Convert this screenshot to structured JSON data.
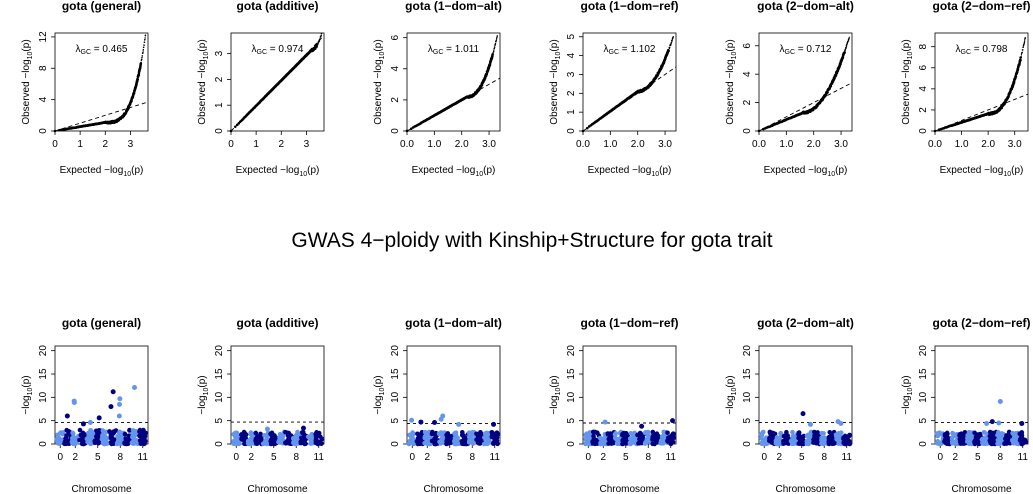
{
  "figure": {
    "main_title": "GWAS 4−ploidy with Kinship+Structure for gota trait"
  },
  "colors": {
    "light_blue": "#6495ed",
    "dark_blue": "#000080",
    "line": "#000000"
  },
  "chart_data": [
    {
      "type": "scatter",
      "subtype": "qq",
      "title": "gota (general)",
      "xlabel": "Expected −log10(p)",
      "ylabel": "Observed −log10(p)",
      "lambda_label": "λGC = 0.465",
      "lambda": 0.465,
      "xlim": [
        0,
        3.7
      ],
      "ylim": [
        0,
        12.5
      ],
      "xticks": [
        0,
        1,
        2,
        3
      ],
      "yticks": [
        0,
        4,
        8,
        12
      ],
      "x_max": 3.6,
      "y_max": 12.2,
      "curve_bend": 2.0,
      "curve_power": 3.2,
      "curve_base": 0.55
    },
    {
      "type": "scatter",
      "subtype": "qq",
      "title": "gota (additive)",
      "xlabel": "Expected −log10(p)",
      "ylabel": "Observed −log10(p)",
      "lambda_label": "λGC = 0.974",
      "lambda": 0.974,
      "xlim": [
        0,
        3.7
      ],
      "ylim": [
        0,
        3.8
      ],
      "xticks": [
        0,
        1,
        2,
        3
      ],
      "yticks": [
        0,
        1,
        2,
        3
      ],
      "x_max": 3.6,
      "y_max": 3.75,
      "curve_bend": 3.2,
      "curve_power": 2.0,
      "curve_base": 0.98
    },
    {
      "type": "scatter",
      "subtype": "qq",
      "title": "gota (1−dom−alt)",
      "xlabel": "Expected −log10(p)",
      "ylabel": "Observed −log10(p)",
      "lambda_label": "λGC = 1.011",
      "lambda": 1.011,
      "xlim": [
        0,
        3.4
      ],
      "ylim": [
        0,
        6.3
      ],
      "xticks": [
        0.0,
        1.0,
        2.0,
        3.0
      ],
      "yticks": [
        0,
        2,
        4,
        6
      ],
      "x_max": 3.3,
      "y_max": 6.1,
      "curve_bend": 2.2,
      "curve_power": 2.2,
      "curve_base": 1.0
    },
    {
      "type": "scatter",
      "subtype": "qq",
      "title": "gota (1−dom−ref)",
      "xlabel": "Expected −log10(p)",
      "ylabel": "Observed −log10(p)",
      "lambda_label": "λGC = 1.102",
      "lambda": 1.102,
      "xlim": [
        0,
        3.4
      ],
      "ylim": [
        0,
        5.2
      ],
      "xticks": [
        0.0,
        1.0,
        2.0,
        3.0
      ],
      "yticks": [
        0,
        1,
        2,
        3,
        4,
        5
      ],
      "x_max": 3.3,
      "y_max": 5.0,
      "curve_bend": 2.0,
      "curve_power": 2.0,
      "curve_base": 1.05
    },
    {
      "type": "scatter",
      "subtype": "qq",
      "title": "gota (2−dom−alt)",
      "xlabel": "Expected −log10(p)",
      "ylabel": "Observed −log10(p)",
      "lambda_label": "λGC = 0.712",
      "lambda": 0.712,
      "xlim": [
        0,
        3.4
      ],
      "ylim": [
        0,
        6.9
      ],
      "xticks": [
        0.0,
        1.0,
        2.0,
        3.0
      ],
      "yticks": [
        0,
        2,
        4,
        6
      ],
      "x_max": 3.3,
      "y_max": 6.6,
      "curve_bend": 1.6,
      "curve_power": 2.0,
      "curve_base": 0.8
    },
    {
      "type": "scatter",
      "subtype": "qq",
      "title": "gota (2−dom−ref)",
      "xlabel": "Expected −log10(p)",
      "ylabel": "Observed −log10(p)",
      "lambda_label": "λGC = 0.798",
      "lambda": 0.798,
      "xlim": [
        0,
        3.5
      ],
      "ylim": [
        0,
        9.3
      ],
      "xticks": [
        0.0,
        1.0,
        2.0,
        3.0
      ],
      "yticks": [
        0,
        2,
        4,
        6,
        8
      ],
      "x_max": 3.4,
      "y_max": 8.9,
      "curve_bend": 2.0,
      "curve_power": 2.4,
      "curve_base": 0.82
    },
    {
      "type": "scatter",
      "subtype": "manhattan",
      "title": "gota (general)",
      "xlabel": "Chromosome",
      "ylabel": "−log10(p)",
      "ylim": [
        0,
        21
      ],
      "yticks": [
        0,
        5,
        10,
        15,
        20
      ],
      "xticks": [
        0,
        2,
        5,
        8,
        11
      ],
      "chromosomes": 12,
      "threshold": 4.6,
      "base_height": 3.0,
      "peaks": [
        [
          2,
          9.2
        ],
        [
          2,
          8.9
        ],
        [
          1,
          6.0
        ],
        [
          5,
          5.6
        ],
        [
          4,
          4.6
        ],
        [
          7,
          11.2
        ],
        [
          7,
          8.0
        ],
        [
          8,
          9.7
        ],
        [
          8,
          8.5
        ],
        [
          8,
          6.0
        ],
        [
          10,
          12.1
        ],
        [
          3,
          4.3
        ]
      ]
    },
    {
      "type": "scatter",
      "subtype": "manhattan",
      "title": "gota (additive)",
      "xlabel": "Chromosome",
      "ylabel": "−log10(p)",
      "ylim": [
        0,
        21
      ],
      "yticks": [
        0,
        5,
        10,
        15,
        20
      ],
      "xticks": [
        0,
        2,
        5,
        8,
        11
      ],
      "chromosomes": 12,
      "threshold": 4.7,
      "base_height": 2.6,
      "peaks": [
        [
          9,
          3.4
        ],
        [
          4,
          3.2
        ]
      ]
    },
    {
      "type": "scatter",
      "subtype": "manhattan",
      "title": "gota (1−dom−alt)",
      "xlabel": "Chromosome",
      "ylabel": "−log10(p)",
      "ylim": [
        0,
        21
      ],
      "yticks": [
        0,
        5,
        10,
        15,
        20
      ],
      "xticks": [
        0,
        2,
        5,
        8,
        11
      ],
      "chromosomes": 12,
      "threshold": 4.4,
      "base_height": 2.6,
      "peaks": [
        [
          0,
          5.1
        ],
        [
          1,
          4.7
        ],
        [
          3,
          4.6
        ],
        [
          4,
          6.0
        ],
        [
          4,
          5.3
        ],
        [
          6,
          4.2
        ],
        [
          11,
          4.2
        ]
      ]
    },
    {
      "type": "scatter",
      "subtype": "manhattan",
      "title": "gota (1−dom−ref)",
      "xlabel": "Chromosome",
      "ylabel": "−log10(p)",
      "ylim": [
        0,
        21
      ],
      "yticks": [
        0,
        5,
        10,
        15,
        20
      ],
      "xticks": [
        0,
        2,
        5,
        8,
        11
      ],
      "chromosomes": 12,
      "threshold": 4.5,
      "base_height": 2.6,
      "peaks": [
        [
          2,
          4.7
        ],
        [
          11,
          5.0
        ],
        [
          7,
          3.8
        ]
      ]
    },
    {
      "type": "scatter",
      "subtype": "manhattan",
      "title": "gota (2−dom−alt)",
      "xlabel": "Chromosome",
      "ylabel": "−log10(p)",
      "ylim": [
        0,
        21
      ],
      "yticks": [
        0,
        5,
        10,
        15,
        20
      ],
      "xticks": [
        0,
        2,
        5,
        8,
        11
      ],
      "chromosomes": 12,
      "threshold": 4.6,
      "base_height": 2.6,
      "peaks": [
        [
          5,
          6.5
        ],
        [
          6,
          4.2
        ],
        [
          10,
          4.8
        ],
        [
          10,
          4.4
        ]
      ]
    },
    {
      "type": "scatter",
      "subtype": "manhattan",
      "title": "gota (2−dom−ref)",
      "xlabel": "Chromosome",
      "ylabel": "−log10(p)",
      "ylim": [
        0,
        21
      ],
      "yticks": [
        0,
        5,
        10,
        15,
        20
      ],
      "xticks": [
        0,
        2,
        5,
        8,
        11
      ],
      "chromosomes": 12,
      "threshold": 4.6,
      "base_height": 2.6,
      "peaks": [
        [
          8,
          9.1
        ],
        [
          8,
          4.5
        ],
        [
          7,
          4.8
        ],
        [
          6,
          4.4
        ],
        [
          11,
          4.4
        ]
      ]
    }
  ]
}
